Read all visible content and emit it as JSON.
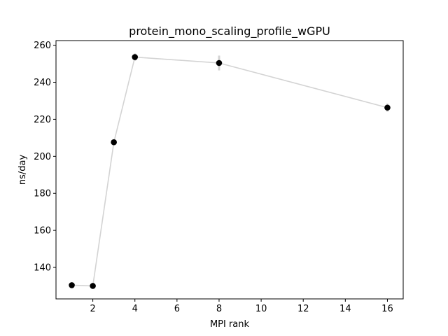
{
  "chart_data": {
    "type": "line",
    "title": "protein_mono_scaling_profile_wGPU",
    "xlabel": "MPI rank",
    "ylabel": "ns/day",
    "xlim": [
      0.25,
      16.75
    ],
    "ylim": [
      123.0,
      262.5
    ],
    "x_ticks": [
      2,
      4,
      6,
      8,
      10,
      12,
      14,
      16
    ],
    "y_ticks": [
      140,
      160,
      180,
      200,
      220,
      240,
      260
    ],
    "grid": false,
    "series": [
      {
        "x": [
          1,
          2,
          3,
          4,
          8,
          16
        ],
        "y": [
          130.4,
          130.0,
          207.6,
          253.6,
          250.4,
          226.3
        ],
        "error": [
          0.6,
          0.6,
          0.8,
          2.0,
          4.0,
          2.2
        ]
      }
    ],
    "colors": {
      "line": "#d3d3d3",
      "errorbar": "#d3d3d3",
      "marker": "#000000",
      "axes": "#000000"
    }
  }
}
